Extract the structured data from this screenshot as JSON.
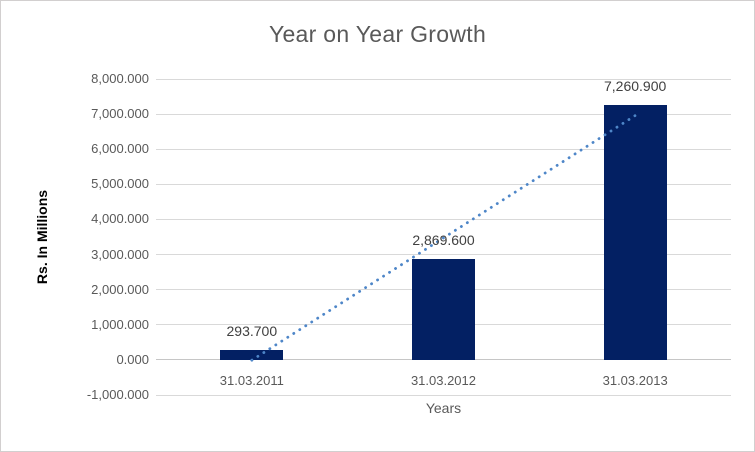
{
  "window": {
    "background": "#ffffff",
    "border_color": "#d2cfcf"
  },
  "chart_data": {
    "type": "bar",
    "title": "Year on Year Growth",
    "xlabel": "Years",
    "ylabel": "Rs. In Millions",
    "categories": [
      "31.03.2011",
      "31.03.2012",
      "31.03.2013"
    ],
    "values": [
      293.7,
      2869.6,
      7260.9
    ],
    "data_labels": [
      "293.700",
      "2,869.600",
      "7,260.900"
    ],
    "y_axis": {
      "min": -1000,
      "max": 8000,
      "step": 1000,
      "tick_labels": [
        "8,000.000",
        "7,000.000",
        "6,000.000",
        "5,000.000",
        "4,000.000",
        "3,000.000",
        "2,000.000",
        "1,000.000",
        "0.000",
        "-1,000.000"
      ]
    },
    "grid": true,
    "legend": false,
    "trendline": {
      "type": "linear",
      "style": "dotted",
      "color": "#4e86c8"
    },
    "colors": {
      "bar": "#032063",
      "gridline": "#d9d9d9",
      "axis_text": "#595959",
      "data_label_text": "#404040",
      "title_text": "#595959",
      "axis_title_text": "#000000"
    }
  }
}
